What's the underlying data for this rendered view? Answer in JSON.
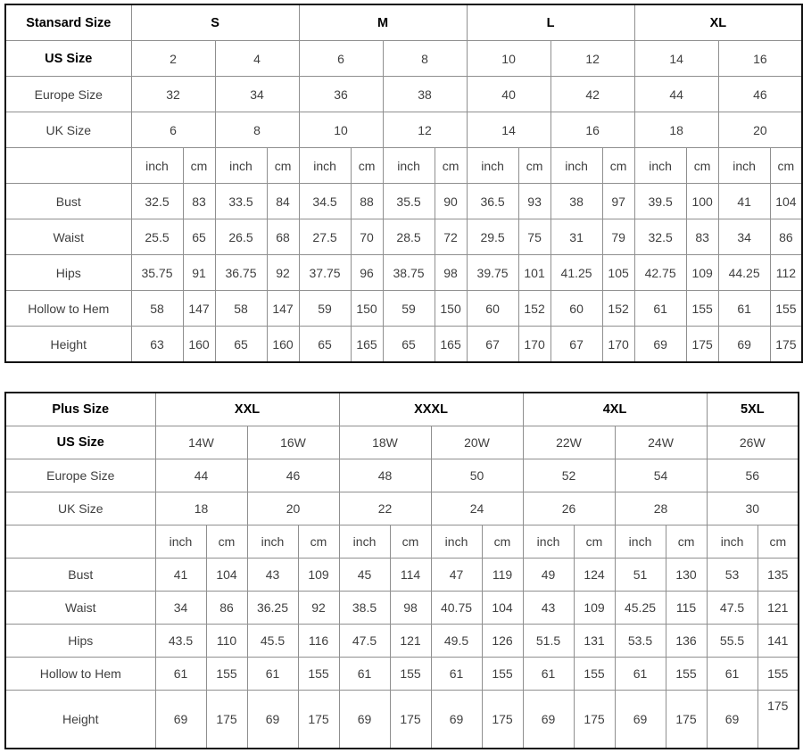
{
  "page": {
    "background_color": "#ffffff",
    "outer_border_color": "#111111",
    "inner_border_color": "#8f8f8f",
    "text_color": "#3f3f3f"
  },
  "chart_data": [
    {
      "type": "table",
      "title": "Stansard Size",
      "size_groups": [
        {
          "label": "S",
          "span": 2
        },
        {
          "label": "M",
          "span": 2
        },
        {
          "label": "L",
          "span": 2
        },
        {
          "label": "XL",
          "span": 2
        }
      ],
      "info_rows": [
        {
          "label": "US Size",
          "bold": true,
          "values": [
            "2",
            "4",
            "6",
            "8",
            "10",
            "12",
            "14",
            "16"
          ]
        },
        {
          "label": "Europe Size",
          "bold": false,
          "values": [
            "32",
            "34",
            "36",
            "38",
            "40",
            "42",
            "44",
            "46"
          ]
        },
        {
          "label": "UK Size",
          "bold": false,
          "values": [
            "6",
            "8",
            "10",
            "12",
            "14",
            "16",
            "18",
            "20"
          ]
        }
      ],
      "unit_labels": [
        "inch",
        "cm"
      ],
      "measure_rows": [
        {
          "label": "Bust",
          "values": [
            "32.5",
            "83",
            "33.5",
            "84",
            "34.5",
            "88",
            "35.5",
            "90",
            "36.5",
            "93",
            "38",
            "97",
            "39.5",
            "100",
            "41",
            "104"
          ]
        },
        {
          "label": "Waist",
          "values": [
            "25.5",
            "65",
            "26.5",
            "68",
            "27.5",
            "70",
            "28.5",
            "72",
            "29.5",
            "75",
            "31",
            "79",
            "32.5",
            "83",
            "34",
            "86"
          ]
        },
        {
          "label": "Hips",
          "values": [
            "35.75",
            "91",
            "36.75",
            "92",
            "37.75",
            "96",
            "38.75",
            "98",
            "39.75",
            "101",
            "41.25",
            "105",
            "42.75",
            "109",
            "44.25",
            "112"
          ]
        },
        {
          "label": "Hollow to Hem",
          "values": [
            "58",
            "147",
            "58",
            "147",
            "59",
            "150",
            "59",
            "150",
            "60",
            "152",
            "60",
            "152",
            "61",
            "155",
            "61",
            "155"
          ]
        },
        {
          "label": "Height",
          "values": [
            "63",
            "160",
            "65",
            "160",
            "65",
            "165",
            "65",
            "165",
            "67",
            "170",
            "67",
            "170",
            "69",
            "175",
            "69",
            "175"
          ]
        }
      ]
    },
    {
      "type": "table",
      "title": "Plus Size",
      "size_groups": [
        {
          "label": "XXL",
          "span": 2
        },
        {
          "label": "XXXL",
          "span": 2
        },
        {
          "label": "4XL",
          "span": 2
        },
        {
          "label": "5XL",
          "span": 1
        }
      ],
      "info_rows": [
        {
          "label": "US Size",
          "bold": true,
          "values": [
            "14W",
            "16W",
            "18W",
            "20W",
            "22W",
            "24W",
            "26W"
          ]
        },
        {
          "label": "Europe Size",
          "bold": false,
          "values": [
            "44",
            "46",
            "48",
            "50",
            "52",
            "54",
            "56"
          ]
        },
        {
          "label": "UK Size",
          "bold": false,
          "values": [
            "18",
            "20",
            "22",
            "24",
            "26",
            "28",
            "30"
          ]
        }
      ],
      "unit_labels": [
        "inch",
        "cm"
      ],
      "measure_rows": [
        {
          "label": "Bust",
          "values": [
            "41",
            "104",
            "43",
            "109",
            "45",
            "114",
            "47",
            "119",
            "49",
            "124",
            "51",
            "130",
            "53",
            "135"
          ]
        },
        {
          "label": "Waist",
          "values": [
            "34",
            "86",
            "36.25",
            "92",
            "38.5",
            "98",
            "40.75",
            "104",
            "43",
            "109",
            "45.25",
            "115",
            "47.5",
            "121"
          ]
        },
        {
          "label": "Hips",
          "values": [
            "43.5",
            "110",
            "45.5",
            "116",
            "47.5",
            "121",
            "49.5",
            "126",
            "51.5",
            "131",
            "53.5",
            "136",
            "55.5",
            "141"
          ]
        },
        {
          "label": "Hollow to Hem",
          "values": [
            "61",
            "155",
            "61",
            "155",
            "61",
            "155",
            "61",
            "155",
            "61",
            "155",
            "61",
            "155",
            "61",
            "155"
          ]
        },
        {
          "label": "Height",
          "values": [
            "69",
            "175",
            "69",
            "175",
            "69",
            "175",
            "69",
            "175",
            "69",
            "175",
            "69",
            "175",
            "69",
            "175"
          ]
        }
      ]
    }
  ]
}
